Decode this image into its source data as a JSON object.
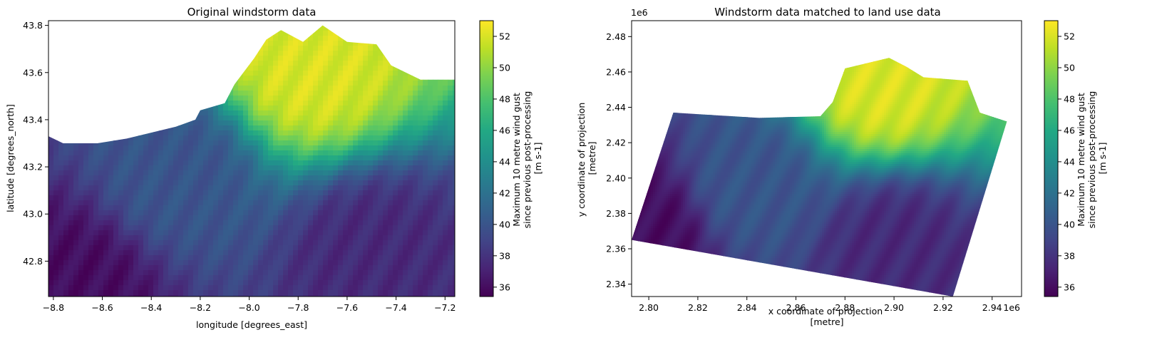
{
  "chart_data": [
    {
      "type": "heatmap",
      "title": "Original windstorm data",
      "xlabel": "longitude [degrees_east]",
      "ylabel": "latitude [degrees_north]",
      "xlim": [
        -8.82,
        -7.16
      ],
      "ylim": [
        42.65,
        43.82
      ],
      "xticks": [
        -8.8,
        -8.6,
        -8.4,
        -8.2,
        -8.0,
        -7.8,
        -7.6,
        -7.4,
        -7.2
      ],
      "yticks": [
        42.8,
        43.0,
        43.2,
        43.4,
        43.6,
        43.8
      ],
      "xtick_labels": [
        "−8.8",
        "−8.6",
        "−8.4",
        "−8.2",
        "−8.0",
        "−7.8",
        "−7.6",
        "−7.4",
        "−7.2"
      ],
      "ytick_labels": [
        "42.8",
        "43.0",
        "43.2",
        "43.4",
        "43.6",
        "43.8"
      ],
      "colorbar": {
        "label_lines": [
          "Maximum 10 metre wind gust",
          "since previous post-processing",
          "[m s-1]"
        ],
        "range": [
          35.4,
          53.0
        ],
        "ticks": [
          36,
          38,
          40,
          42,
          44,
          46,
          48,
          50,
          52
        ],
        "tick_labels": [
          "36",
          "38",
          "40",
          "42",
          "44",
          "46",
          "48",
          "50",
          "52"
        ],
        "colormap": "viridis"
      },
      "field_peaks": [
        {
          "x": -7.75,
          "y": 43.63,
          "value": 52
        },
        {
          "x": -8.7,
          "y": 42.7,
          "value": 36
        },
        {
          "x": -7.5,
          "y": 42.82,
          "value": 37.5
        },
        {
          "x": -8.3,
          "y": 43.15,
          "value": 40
        }
      ],
      "coastline": [
        [
          -8.82,
          43.33
        ],
        [
          -8.76,
          43.3
        ],
        [
          -8.62,
          43.3
        ],
        [
          -8.5,
          43.32
        ],
        [
          -8.3,
          43.37
        ],
        [
          -8.22,
          43.4
        ],
        [
          -8.2,
          43.44
        ],
        [
          -8.1,
          43.47
        ],
        [
          -8.06,
          43.55
        ],
        [
          -7.98,
          43.66
        ],
        [
          -7.93,
          43.74
        ],
        [
          -7.87,
          43.78
        ],
        [
          -7.78,
          43.73
        ],
        [
          -7.7,
          43.8
        ],
        [
          -7.6,
          43.73
        ],
        [
          -7.48,
          43.72
        ],
        [
          -7.42,
          43.63
        ],
        [
          -7.3,
          43.57
        ],
        [
          -7.16,
          43.57
        ]
      ]
    },
    {
      "type": "heatmap",
      "title": "Windstorm data matched to land use data",
      "xlabel_lines": [
        "x coordinate of projection",
        "[metre]"
      ],
      "ylabel_lines": [
        "y coordinate of projection",
        "[metre]"
      ],
      "x_offset_label": "1e6",
      "y_offset_label": "1e6",
      "xlim": [
        2.793,
        2.952
      ],
      "ylim": [
        2.333,
        2.489
      ],
      "xticks": [
        2.8,
        2.82,
        2.84,
        2.86,
        2.88,
        2.9,
        2.92,
        2.94
      ],
      "yticks": [
        2.34,
        2.36,
        2.38,
        2.4,
        2.42,
        2.44,
        2.46,
        2.48
      ],
      "xtick_labels": [
        "2.80",
        "2.82",
        "2.84",
        "2.86",
        "2.88",
        "2.90",
        "2.92",
        "2.94"
      ],
      "ytick_labels": [
        "2.34",
        "2.36",
        "2.38",
        "2.40",
        "2.42",
        "2.44",
        "2.46",
        "2.48"
      ],
      "colorbar": {
        "label_lines": [
          "Maximum 10 metre wind gust",
          "since previous post-processing",
          "[m s-1]"
        ],
        "range": [
          35.4,
          53.0
        ],
        "ticks": [
          36,
          38,
          40,
          42,
          44,
          46,
          48,
          50,
          52
        ],
        "tick_labels": [
          "36",
          "38",
          "40",
          "42",
          "44",
          "46",
          "48",
          "50",
          "52"
        ],
        "colormap": "viridis"
      },
      "field_peaks": [
        {
          "x": 2.895,
          "y": 2.455,
          "value": 52
        },
        {
          "x": 2.8,
          "y": 2.37,
          "value": 36
        },
        {
          "x": 2.9,
          "y": 2.36,
          "value": 37.5
        },
        {
          "x": 2.84,
          "y": 2.395,
          "value": 40
        }
      ],
      "footprint": [
        [
          2.793,
          2.365
        ],
        [
          2.81,
          2.437
        ],
        [
          2.845,
          2.434
        ],
        [
          2.87,
          2.435
        ],
        [
          2.875,
          2.443
        ],
        [
          2.88,
          2.462
        ],
        [
          2.898,
          2.468
        ],
        [
          2.905,
          2.463
        ],
        [
          2.912,
          2.457
        ],
        [
          2.93,
          2.455
        ],
        [
          2.935,
          2.437
        ],
        [
          2.946,
          2.432
        ],
        [
          2.924,
          2.333
        ],
        [
          2.793,
          2.365
        ]
      ]
    }
  ]
}
